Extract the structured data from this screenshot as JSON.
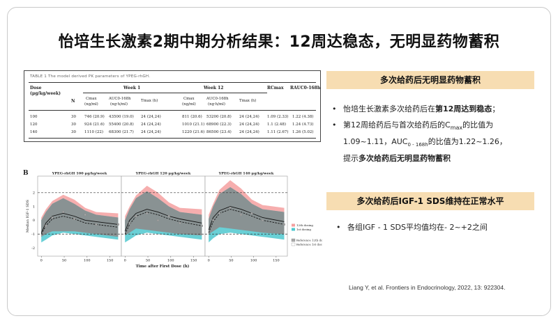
{
  "slide_title": "怡培生长激素2期中期分析结果：12周达稳态，无明显药物蓄积",
  "table": {
    "caption": "TABLE 1  The model derived PK parameters of YPEG-rhGH.",
    "headers": {
      "dose": "Dose",
      "dose_unit": "(μg/kg/week)",
      "n": "N",
      "week1": "Week 1",
      "week12": "Week 12",
      "rc": "RCmax",
      "rauc": "RAUC0-168h",
      "cmax": "Cmax",
      "cmax_unit": "(ng/ml)",
      "auc": "AUC0-168h",
      "auc_unit": "(ng·h/ml)",
      "tmax": "Tmax (h)"
    },
    "rows": [
      [
        "100",
        "30",
        "746 (20.9)",
        "43500 (19.0)",
        "24 (24,24)",
        "811 (20.6)",
        "53200 (20.8)",
        "24 (24,24)",
        "1.09 (2.33)",
        "1.22 (4.38)"
      ],
      [
        "120",
        "30",
        "924 (21.6)",
        "55400 (20.8)",
        "24 (24,24)",
        "1010 (21.1)",
        "68900 (22.3)",
        "24 (24,24)",
        "1.1 (2.48)",
        "1.24 (4.73)"
      ],
      [
        "140",
        "30",
        "1110 (22)",
        "68300 (21.7)",
        "24 (24,24)",
        "1220 (21.6)",
        "86500 (23.4)",
        "24 (24,24)",
        "1.11 (2.67)",
        "1.26 (5.02)"
      ]
    ]
  },
  "right_panel": {
    "section1_title": "多次给药后无明显药物蓄积",
    "bullet1_pre": "怡培生长激素多次给药后在",
    "bullet1_bold": "第12周达到稳态",
    "bullet1_post": "；",
    "bullet2_line1_pre": "第12周给药后与首次给药后的C",
    "bullet2_line1_sub": "max",
    "bullet2_line1_post": "的比值为",
    "bullet2_line2_pre": "1.09~1.11，AUC",
    "bullet2_line2_sub": "0 - 168h",
    "bullet2_line2_post": "的比值为1.22~1.26，",
    "bullet2_line3_pre": "提示",
    "bullet2_line3_bold": "多次给药后无明显药物蓄积",
    "section2_title": "多次给药后IGF-1 SDS维持在正常水平",
    "bullet3": "各组IGF - 1 SDS平均值均在- 2~+2之间"
  },
  "citation": "Liang Y, et al. Frontiers in Endocrinology, 2022, 13: 922304.",
  "chart_data": {
    "type": "line",
    "panel_label": "B",
    "ylabel": "Median IGF-1 SDS",
    "xlabel": "Time after First Dose (h)",
    "xlim": [
      -8,
      175
    ],
    "ylim": [
      -2.6,
      3.2
    ],
    "x_ticks": [
      0,
      50,
      100,
      150
    ],
    "y_ticks": [
      -2,
      -1,
      0,
      1,
      2
    ],
    "reference_lines": [
      2,
      -1
    ],
    "legend": [
      "12th dosing",
      "1st dosing",
      "Reference 12th dosing",
      "Reference 1st dosing"
    ],
    "colors": {
      "week12_band": "#f4a0a0",
      "week1_band": "#4fc8cf",
      "overlap": "#8d8d8d"
    },
    "panels": [
      {
        "title": "YPEG-rhGH 100 μg/kg/week",
        "x": [
          0,
          10,
          24,
          48,
          72,
          96,
          120,
          168
        ],
        "band12_upper": [
          0.2,
          0.8,
          1.4,
          1.85,
          1.5,
          0.9,
          0.6,
          0.5
        ],
        "band12_lower": [
          -1.2,
          -1.0,
          -0.8,
          -0.8,
          -0.8,
          -0.9,
          -1.0,
          -1.2
        ],
        "band1_upper": [
          0.0,
          0.6,
          1.2,
          1.6,
          1.2,
          0.7,
          0.4,
          0.2
        ],
        "band1_lower": [
          -1.6,
          -1.4,
          -1.1,
          -0.9,
          -1.0,
          -1.1,
          -1.2,
          -1.4
        ],
        "median12": [
          -0.9,
          -0.2,
          0.3,
          0.5,
          0.3,
          0.0,
          -0.1,
          -0.3
        ],
        "median1": [
          -1.0,
          -0.4,
          0.1,
          0.3,
          0.1,
          -0.2,
          -0.3,
          -0.5
        ],
        "obs_points": [
          [
            10,
            -0.4
          ],
          [
            24,
            0.2
          ],
          [
            48,
            0.6
          ],
          [
            72,
            0.1
          ],
          [
            96,
            0.4
          ],
          [
            120,
            -0.3
          ],
          [
            168,
            -0.3
          ]
        ]
      },
      {
        "title": "YPEG-rhGH 120 μg/kg/week",
        "x": [
          0,
          10,
          24,
          48,
          72,
          96,
          120,
          168
        ],
        "band12_upper": [
          0.3,
          1.0,
          1.8,
          2.5,
          2.0,
          1.3,
          0.9,
          0.8
        ],
        "band12_lower": [
          -1.1,
          -0.9,
          -0.6,
          -0.7,
          -0.8,
          -0.9,
          -1.0,
          -1.1
        ],
        "band1_upper": [
          0.0,
          0.8,
          1.6,
          2.1,
          1.6,
          1.0,
          0.6,
          0.4
        ],
        "band1_lower": [
          -1.6,
          -1.4,
          -1.1,
          -0.9,
          -1.0,
          -1.1,
          -1.2,
          -1.4
        ],
        "median12": [
          -0.8,
          0.0,
          0.5,
          0.8,
          0.6,
          0.3,
          0.1,
          -0.2
        ],
        "median1": [
          -1.0,
          -0.3,
          0.3,
          0.6,
          0.4,
          0.1,
          -0.1,
          -0.4
        ],
        "obs_points": [
          [
            10,
            -0.2
          ],
          [
            24,
            0.3
          ],
          [
            48,
            0.5
          ],
          [
            72,
            0.0
          ],
          [
            96,
            0.3
          ],
          [
            120,
            -0.2
          ],
          [
            168,
            -0.4
          ]
        ]
      },
      {
        "title": "YPEG-rhGH 140 μg/kg/week",
        "x": [
          0,
          10,
          24,
          48,
          72,
          96,
          120,
          168
        ],
        "band12_upper": [
          0.4,
          1.2,
          2.2,
          2.9,
          2.3,
          1.5,
          1.1,
          0.9
        ],
        "band12_lower": [
          -1.0,
          -0.8,
          -0.5,
          -0.6,
          -0.7,
          -0.8,
          -0.9,
          -1.0
        ],
        "band1_upper": [
          0.1,
          1.0,
          1.9,
          2.4,
          1.9,
          1.2,
          0.8,
          0.6
        ],
        "band1_lower": [
          -1.6,
          -1.3,
          -1.0,
          -0.9,
          -1.0,
          -1.1,
          -1.2,
          -1.4
        ],
        "median12": [
          -0.7,
          0.2,
          0.7,
          1.0,
          0.8,
          0.5,
          0.2,
          -0.1
        ],
        "median1": [
          -0.9,
          -0.1,
          0.5,
          0.8,
          0.6,
          0.3,
          0.0,
          -0.3
        ],
        "obs_points": [
          [
            10,
            0.0
          ],
          [
            24,
            0.5
          ],
          [
            48,
            0.9
          ],
          [
            72,
            0.4
          ],
          [
            96,
            0.5
          ],
          [
            120,
            0.0
          ],
          [
            168,
            -0.3
          ]
        ]
      }
    ]
  }
}
